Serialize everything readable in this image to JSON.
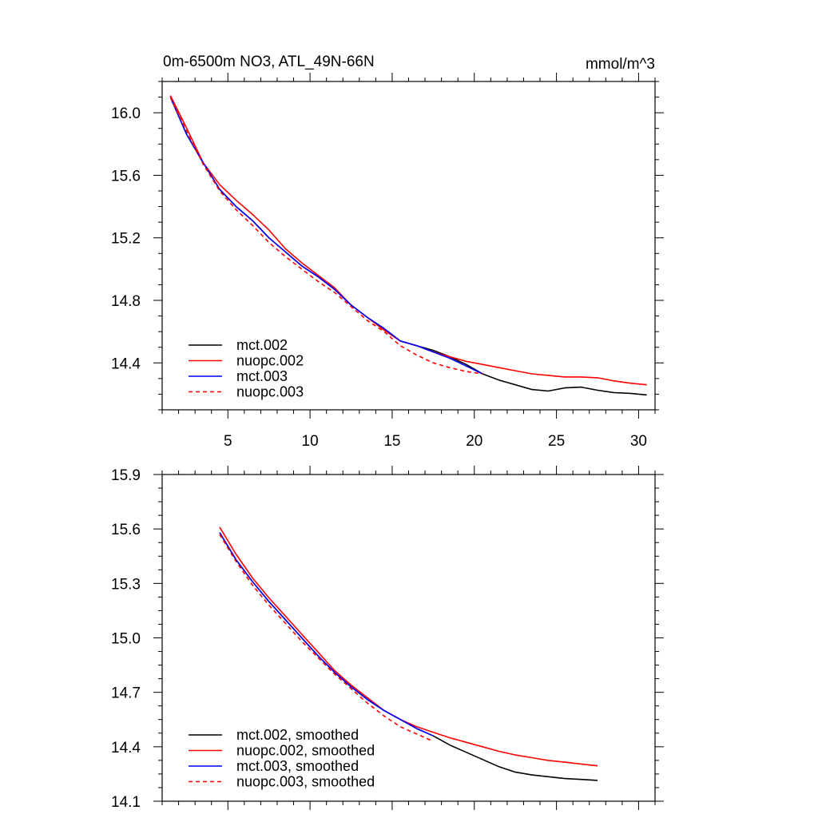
{
  "chart_data": [
    {
      "type": "line",
      "title": "0m-6500m NO3, ATL_49N-66N",
      "units": "mmol/m^3",
      "xlim": [
        1,
        31
      ],
      "ylim": [
        14.1,
        16.2
      ],
      "xticks": [
        5,
        10,
        15,
        20,
        25,
        30
      ],
      "yticks": [
        14.4,
        14.8,
        15.2,
        15.6,
        16.0
      ],
      "ytick_labels": [
        "14.4",
        "14.8",
        "15.2",
        "15.6",
        "16.0"
      ],
      "legend": "bottom-left",
      "series": [
        {
          "name": "mct.002",
          "color": "#000000",
          "dash": false,
          "x": [
            1.5,
            2.5,
            3.5,
            4.5,
            5.5,
            6.5,
            7.5,
            8.5,
            9.5,
            10.5,
            11.5,
            12.5,
            13.5,
            14.5,
            15.5,
            16.5,
            17.5,
            18.5,
            19.5,
            20.5,
            21.5,
            22.5,
            23.5,
            24.5,
            25.5,
            26.5,
            27.5,
            28.5,
            29.5,
            30.5
          ],
          "y": [
            16.1,
            15.86,
            15.68,
            15.51,
            15.4,
            15.31,
            15.2,
            15.11,
            15.02,
            14.95,
            14.87,
            14.77,
            14.69,
            14.62,
            14.54,
            14.51,
            14.48,
            14.44,
            14.39,
            14.33,
            14.29,
            14.26,
            14.23,
            14.22,
            14.24,
            14.245,
            14.225,
            14.21,
            14.205,
            14.195
          ]
        },
        {
          "name": "nuopc.002",
          "color": "#ff0000",
          "dash": false,
          "x": [
            1.5,
            2.5,
            3.5,
            4.5,
            5.5,
            6.5,
            7.5,
            8.5,
            9.5,
            10.5,
            11.5,
            12.5,
            13.5,
            14.5,
            15.5,
            16.5,
            17.5,
            18.5,
            19.5,
            20.5,
            21.5,
            22.5,
            23.5,
            24.5,
            25.5,
            26.5,
            27.5,
            28.5,
            29.5,
            30.5
          ],
          "y": [
            16.11,
            15.9,
            15.68,
            15.54,
            15.44,
            15.35,
            15.25,
            15.13,
            15.04,
            14.96,
            14.88,
            14.77,
            14.69,
            14.61,
            14.54,
            14.51,
            14.47,
            14.44,
            14.41,
            14.39,
            14.37,
            14.35,
            14.33,
            14.32,
            14.31,
            14.31,
            14.305,
            14.285,
            14.27,
            14.26
          ]
        },
        {
          "name": "mct.003",
          "color": "#0000ff",
          "dash": false,
          "x": [
            1.5,
            2.5,
            3.5,
            4.5,
            5.5,
            6.5,
            7.5,
            8.5,
            9.5,
            10.5,
            11.5,
            12.5,
            13.5,
            14.5,
            15.5,
            16.5,
            17.5,
            18.5,
            19.5,
            20.5
          ],
          "y": [
            16.1,
            15.86,
            15.68,
            15.51,
            15.4,
            15.31,
            15.2,
            15.11,
            15.02,
            14.95,
            14.87,
            14.77,
            14.69,
            14.62,
            14.54,
            14.51,
            14.47,
            14.43,
            14.38,
            14.33
          ]
        },
        {
          "name": "nuopc.003",
          "color": "#ff0000",
          "dash": true,
          "x": [
            1.5,
            2.5,
            3.5,
            4.5,
            5.5,
            6.5,
            7.5,
            8.5,
            9.5,
            10.5,
            11.5,
            12.5,
            13.5,
            14.5,
            15.5,
            16.5,
            17.5,
            18.5,
            19.5,
            20.5
          ],
          "y": [
            16.1,
            15.88,
            15.67,
            15.5,
            15.38,
            15.28,
            15.17,
            15.08,
            15.0,
            14.92,
            14.85,
            14.76,
            14.67,
            14.6,
            14.51,
            14.45,
            14.4,
            14.37,
            14.345,
            14.33
          ]
        }
      ]
    },
    {
      "type": "line",
      "xlim": [
        1,
        31
      ],
      "ylim": [
        14.1,
        15.9
      ],
      "xticks": [
        5,
        10,
        15,
        20,
        25,
        30
      ],
      "yticks": [
        14.1,
        14.4,
        14.7,
        15.0,
        15.3,
        15.6,
        15.9
      ],
      "ytick_labels": [
        "14.1",
        "14.4",
        "14.7",
        "15.0",
        "15.3",
        "15.6",
        "15.9"
      ],
      "legend": "bottom-left",
      "series": [
        {
          "name": "mct.002, smoothed",
          "color": "#000000",
          "dash": false,
          "x": [
            4.5,
            5.5,
            6.5,
            7.5,
            8.5,
            9.5,
            10.5,
            11.5,
            12.5,
            13.5,
            14.5,
            15.5,
            16.5,
            17.5,
            18.5,
            19.5,
            20.5,
            21.5,
            22.5,
            23.5,
            24.5,
            25.5,
            26.5,
            27.5
          ],
          "y": [
            15.58,
            15.43,
            15.31,
            15.2,
            15.1,
            15.0,
            14.9,
            14.81,
            14.73,
            14.66,
            14.6,
            14.55,
            14.5,
            14.46,
            14.41,
            14.37,
            14.33,
            14.29,
            14.26,
            14.245,
            14.235,
            14.225,
            14.22,
            14.215
          ]
        },
        {
          "name": "nuopc.002, smoothed",
          "color": "#ff0000",
          "dash": false,
          "x": [
            4.5,
            5.5,
            6.5,
            7.5,
            8.5,
            9.5,
            10.5,
            11.5,
            12.5,
            13.5,
            14.5,
            15.5,
            16.5,
            17.5,
            18.5,
            19.5,
            20.5,
            21.5,
            22.5,
            23.5,
            24.5,
            25.5,
            26.5,
            27.5
          ],
          "y": [
            15.61,
            15.46,
            15.33,
            15.22,
            15.12,
            15.02,
            14.92,
            14.82,
            14.74,
            14.67,
            14.6,
            14.55,
            14.51,
            14.48,
            14.45,
            14.425,
            14.4,
            14.375,
            14.355,
            14.34,
            14.325,
            14.315,
            14.305,
            14.295
          ]
        },
        {
          "name": "mct.003, smoothed",
          "color": "#0000ff",
          "dash": false,
          "x": [
            4.5,
            5.5,
            6.5,
            7.5,
            8.5,
            9.5,
            10.5,
            11.5,
            12.5,
            13.5,
            14.5,
            15.5,
            16.5,
            17.5
          ],
          "y": [
            15.58,
            15.43,
            15.31,
            15.2,
            15.1,
            15.0,
            14.9,
            14.81,
            14.73,
            14.66,
            14.6,
            14.55,
            14.5,
            14.46
          ]
        },
        {
          "name": "nuopc.003, smoothed",
          "color": "#ff0000",
          "dash": true,
          "x": [
            4.5,
            5.5,
            6.5,
            7.5,
            8.5,
            9.5,
            10.5,
            11.5,
            12.5,
            13.5,
            14.5,
            15.5,
            16.5,
            17.5
          ],
          "y": [
            15.57,
            15.42,
            15.29,
            15.18,
            15.08,
            14.98,
            14.89,
            14.8,
            14.72,
            14.64,
            14.57,
            14.51,
            14.47,
            14.43
          ]
        }
      ]
    }
  ]
}
